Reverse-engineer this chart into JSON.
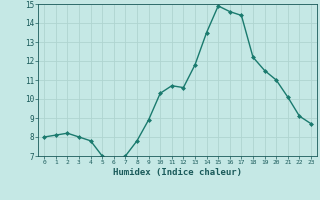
{
  "x": [
    0,
    1,
    2,
    3,
    4,
    5,
    6,
    7,
    8,
    9,
    10,
    11,
    12,
    13,
    14,
    15,
    16,
    17,
    18,
    19,
    20,
    21,
    22,
    23
  ],
  "y": [
    8.0,
    8.1,
    8.2,
    8.0,
    7.8,
    7.0,
    6.8,
    7.0,
    7.8,
    8.9,
    10.3,
    10.7,
    10.6,
    11.8,
    13.5,
    14.9,
    14.6,
    14.4,
    12.2,
    11.5,
    11.0,
    10.1,
    9.1,
    8.7
  ],
  "line_color": "#1a7a6e",
  "marker": "D",
  "marker_size": 2.0,
  "bg_color": "#c5e8e5",
  "grid_color": "#afd4d0",
  "xlabel": "Humidex (Indice chaleur)",
  "xlabel_color": "#1a5a5a",
  "tick_color": "#1a5a5a",
  "ylim": [
    7,
    15
  ],
  "xlim": [
    -0.5,
    23.5
  ],
  "yticks": [
    7,
    8,
    9,
    10,
    11,
    12,
    13,
    14,
    15
  ],
  "xticks": [
    0,
    1,
    2,
    3,
    4,
    5,
    6,
    7,
    8,
    9,
    10,
    11,
    12,
    13,
    14,
    15,
    16,
    17,
    18,
    19,
    20,
    21,
    22,
    23
  ]
}
